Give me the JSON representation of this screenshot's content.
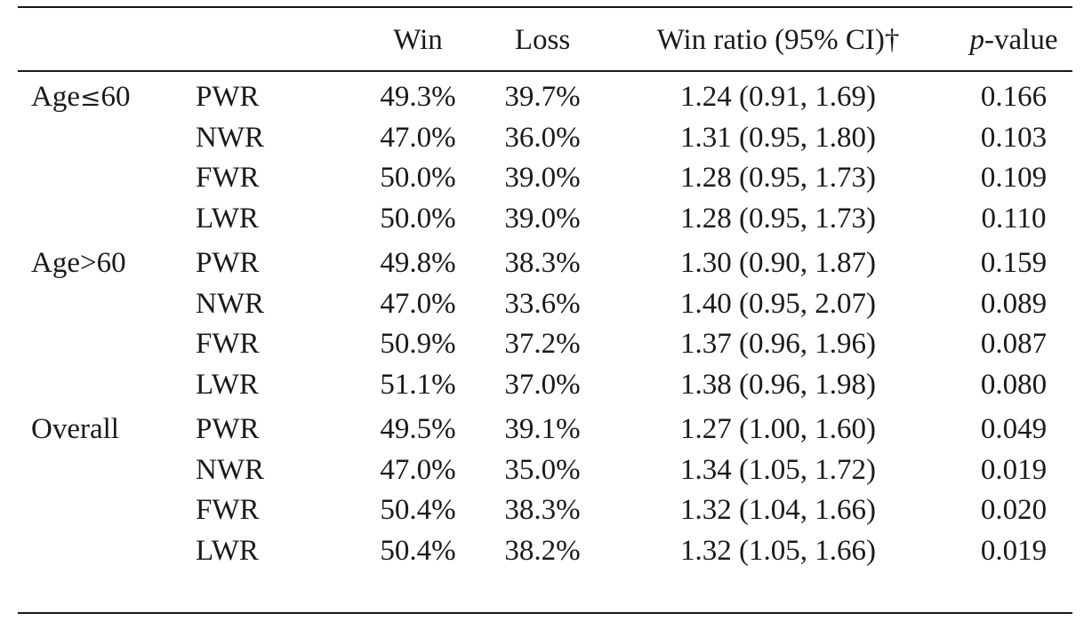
{
  "table": {
    "headers": {
      "group": "",
      "method": "",
      "win": "Win",
      "loss": "Loss",
      "ratio": "Win ratio (95% CI)†",
      "p_italic": "p",
      "p_rest": "-value"
    },
    "groups": [
      {
        "label_pre": "Age",
        "label_sym": "≤",
        "label_post": "60",
        "rows": [
          {
            "method": "PWR",
            "win": "49.3%",
            "loss": "39.7%",
            "ratio": "1.24 (0.91, 1.69)",
            "p": "0.166"
          },
          {
            "method": "NWR",
            "win": "47.0%",
            "loss": "36.0%",
            "ratio": "1.31 (0.95, 1.80)",
            "p": "0.103"
          },
          {
            "method": "FWR",
            "win": "50.0%",
            "loss": "39.0%",
            "ratio": "1.28 (0.95, 1.73)",
            "p": "0.109"
          },
          {
            "method": "LWR",
            "win": "50.0%",
            "loss": "39.0%",
            "ratio": "1.28 (0.95, 1.73)",
            "p": "0.110"
          }
        ]
      },
      {
        "label_pre": "Age",
        "label_sym": ">",
        "label_post": "60",
        "rows": [
          {
            "method": "PWR",
            "win": "49.8%",
            "loss": "38.3%",
            "ratio": "1.30 (0.90, 1.87)",
            "p": "0.159"
          },
          {
            "method": "NWR",
            "win": "47.0%",
            "loss": "33.6%",
            "ratio": "1.40 (0.95, 2.07)",
            "p": "0.089"
          },
          {
            "method": "FWR",
            "win": "50.9%",
            "loss": "37.2%",
            "ratio": "1.37 (0.96, 1.96)",
            "p": "0.087"
          },
          {
            "method": "LWR",
            "win": "51.1%",
            "loss": "37.0%",
            "ratio": "1.38 (0.96, 1.98)",
            "p": "0.080"
          }
        ]
      },
      {
        "label_pre": "Overall",
        "label_sym": "",
        "label_post": "",
        "rows": [
          {
            "method": "PWR",
            "win": "49.5%",
            "loss": "39.1%",
            "ratio": "1.27 (1.00, 1.60)",
            "p": "0.049"
          },
          {
            "method": "NWR",
            "win": "47.0%",
            "loss": "35.0%",
            "ratio": "1.34 (1.05, 1.72)",
            "p": "0.019"
          },
          {
            "method": "FWR",
            "win": "50.4%",
            "loss": "38.3%",
            "ratio": "1.32 (1.04, 1.66)",
            "p": "0.020"
          },
          {
            "method": "LWR",
            "win": "50.4%",
            "loss": "38.2%",
            "ratio": "1.32 (1.05, 1.66)",
            "p": "0.019"
          }
        ]
      }
    ]
  }
}
